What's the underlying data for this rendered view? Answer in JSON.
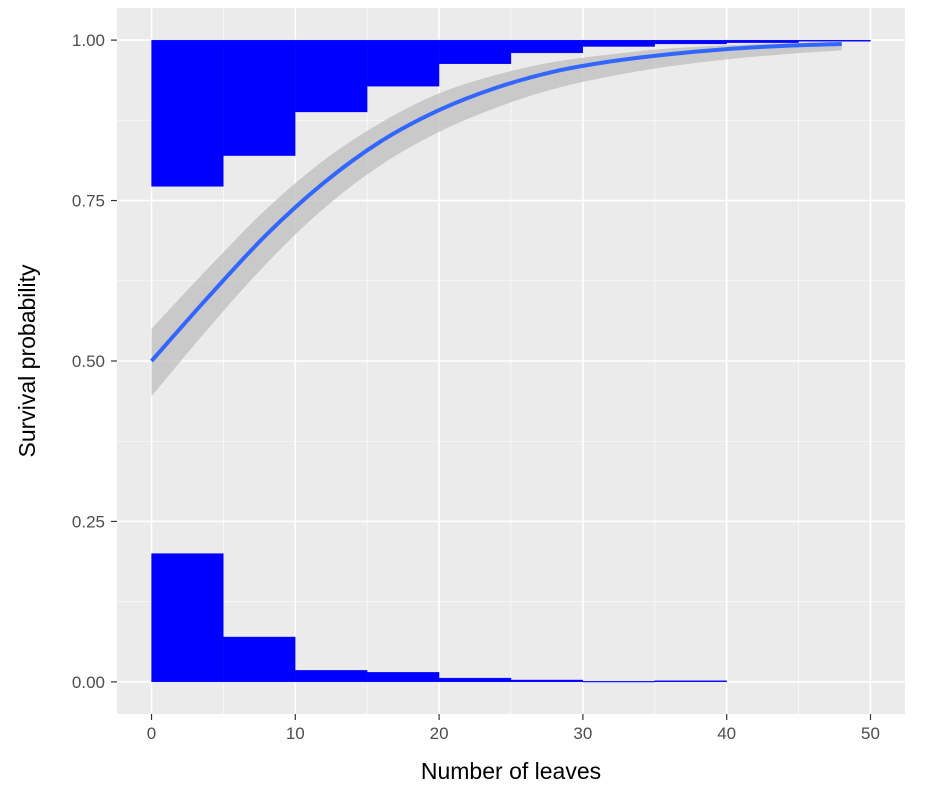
{
  "chart_data": {
    "type": "histogram-with-logistic-fit",
    "xlabel": "Number of leaves",
    "ylabel": "Survival probability",
    "xlim": [
      -2.4,
      52.4
    ],
    "ylim": [
      -0.05,
      1.05
    ],
    "x_ticks": [
      0,
      10,
      20,
      30,
      40,
      50
    ],
    "x_tick_labels": [
      "0",
      "10",
      "20",
      "30",
      "40",
      "50"
    ],
    "y_ticks": [
      0,
      0.25,
      0.5,
      0.75,
      1
    ],
    "y_tick_labels": [
      "0.00",
      "0.25",
      "0.50",
      "0.75",
      "1.00"
    ],
    "grid": true,
    "colors": {
      "panel": "#ebebeb",
      "grid_major": "#ffffff",
      "bars": "#0000ff",
      "fit_line": "#3366ff",
      "confidence_band": "#bebebe"
    },
    "bin_width": 5,
    "bars_bottom": {
      "bin_starts": [
        0,
        5,
        10,
        15,
        20,
        25,
        30,
        35
      ],
      "heights": [
        0.2,
        0.07,
        0.018,
        0.015,
        0.006,
        0.003,
        0.001,
        0.002
      ]
    },
    "bars_top": {
      "bin_starts": [
        0,
        5,
        10,
        15,
        20,
        25,
        30,
        35,
        40,
        45
      ],
      "depths": [
        0.228,
        0.18,
        0.112,
        0.072,
        0.037,
        0.02,
        0.01,
        0.006,
        0.004,
        0.002
      ]
    },
    "fit": {
      "x": [
        0,
        4,
        8,
        12,
        16,
        20,
        24,
        28,
        32,
        36,
        40,
        44,
        48
      ],
      "y": [
        0.5,
        0.601,
        0.697,
        0.778,
        0.843,
        0.891,
        0.926,
        0.951,
        0.967,
        0.978,
        0.986,
        0.991,
        0.994
      ],
      "lower": [
        0.445,
        0.552,
        0.652,
        0.738,
        0.806,
        0.857,
        0.895,
        0.924,
        0.944,
        0.959,
        0.97,
        0.978,
        0.984
      ],
      "upper": [
        0.55,
        0.646,
        0.737,
        0.813,
        0.872,
        0.917,
        0.946,
        0.966,
        0.978,
        0.987,
        0.992,
        0.995,
        0.997
      ]
    }
  }
}
